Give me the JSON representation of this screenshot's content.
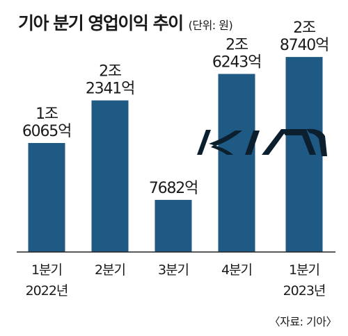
{
  "chart_data": {
    "type": "bar",
    "title": "기아 분기 영업이익 추이",
    "unit_note": "(단위: 원)",
    "source": "〈자료: 기아〉",
    "categories": [
      [
        "1분기",
        "2022년"
      ],
      [
        "2분기"
      ],
      [
        "3분기"
      ],
      [
        "4분기"
      ],
      [
        "1분기",
        "2023년"
      ]
    ],
    "values_krw_100m": [
      16065,
      22341,
      7682,
      26243,
      28740
    ],
    "data_labels": [
      [
        "1조",
        "6065억"
      ],
      [
        "2조",
        "2341억"
      ],
      [
        "7682억"
      ],
      [
        "2조",
        "6243억"
      ],
      [
        "2조",
        "8740억"
      ]
    ],
    "ylim": [
      0,
      31000
    ],
    "bar_color": "#1f5a85",
    "logo_text": "KIA",
    "logo_color": "#0b1f2e"
  }
}
